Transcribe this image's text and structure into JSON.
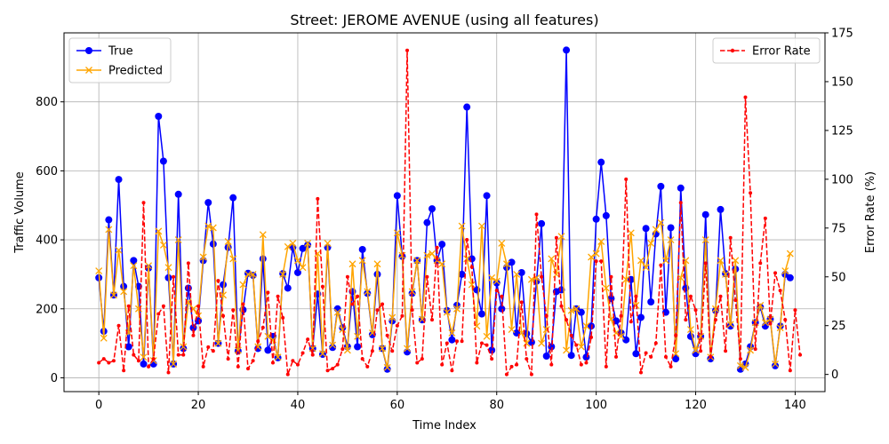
{
  "chart_data": {
    "type": "line",
    "title": "Street: JEROME AVENUE (using all features)",
    "xlabel": "Time Index",
    "ylabel": "Traffic Volume",
    "y2label": "Error Rate (%)",
    "xlim": [
      -7,
      146
    ],
    "ylim": [
      -40,
      1000
    ],
    "y2lim": [
      -8.8,
      175
    ],
    "xticks": [
      0,
      20,
      40,
      60,
      80,
      100,
      120,
      140
    ],
    "yticks": [
      0,
      200,
      400,
      600,
      800
    ],
    "y2ticks": [
      0,
      25,
      50,
      75,
      100,
      125,
      150,
      175
    ],
    "grid": true,
    "legend_left_position": "upper-left",
    "legend_right_position": "upper-right",
    "colors": {
      "true": "#0000ff",
      "predicted": "#ffa500",
      "error": "#ff0000"
    },
    "series": [
      {
        "name": "True",
        "axis": "left",
        "marker": "circle",
        "values": [
          290,
          135,
          458,
          240,
          575,
          265,
          90,
          340,
          265,
          40,
          318,
          40,
          758,
          628,
          290,
          40,
          532,
          85,
          260,
          145,
          165,
          340,
          508,
          388,
          100,
          270,
          378,
          522,
          78,
          197,
          303,
          297,
          85,
          345,
          80,
          120,
          58,
          302,
          260,
          378,
          305,
          375,
          385,
          85,
          243,
          68,
          378,
          88,
          200,
          145,
          90,
          250,
          90,
          372,
          245,
          125,
          300,
          85,
          25,
          165,
          528,
          352,
          75,
          245,
          340,
          168,
          450,
          490,
          340,
          387,
          195,
          110,
          210,
          300,
          785,
          345,
          255,
          185,
          528,
          80,
          275,
          200,
          320,
          335,
          130,
          305,
          128,
          103,
          280,
          447,
          63,
          90,
          250,
          255,
          950,
          65,
          200,
          190,
          60,
          150,
          460,
          625,
          470,
          230,
          165,
          130,
          110,
          285,
          70,
          175,
          433,
          220,
          417,
          555,
          190,
          435,
          55,
          550,
          260,
          120,
          70,
          120,
          473,
          55,
          195,
          488,
          302,
          150,
          315,
          25,
          40,
          90,
          160,
          205,
          150,
          170,
          35,
          150,
          300,
          290
        ]
      },
      {
        "name": "Predicted",
        "axis": "left",
        "marker": "x",
        "values": [
          310,
          115,
          430,
          240,
          370,
          250,
          130,
          325,
          200,
          60,
          325,
          50,
          425,
          385,
          320,
          40,
          400,
          90,
          220,
          200,
          180,
          350,
          440,
          435,
          100,
          240,
          395,
          345,
          80,
          270,
          300,
          300,
          90,
          415,
          120,
          110,
          60,
          300,
          380,
          390,
          340,
          320,
          390,
          85,
          360,
          70,
          390,
          95,
          190,
          140,
          80,
          330,
          120,
          340,
          250,
          130,
          330,
          85,
          30,
          175,
          420,
          355,
          85,
          250,
          340,
          170,
          355,
          360,
          340,
          330,
          190,
          130,
          200,
          440,
          345,
          270,
          150,
          440,
          120,
          290,
          280,
          390,
          330,
          140,
          300,
          130,
          100,
          285,
          290,
          100,
          140,
          345,
          300,
          410,
          80,
          195,
          200,
          90,
          150,
          350,
          360,
          395,
          260,
          170,
          130,
          120,
          285,
          420,
          210,
          340,
          320,
          390,
          430,
          450,
          340,
          400,
          70,
          290,
          340,
          140,
          80,
          120,
          400,
          60,
          200,
          340,
          300,
          155,
          340,
          35,
          30,
          80,
          160,
          210,
          160,
          170,
          40,
          145,
          310,
          360
        ]
      },
      {
        "name": "Error Rate",
        "axis": "right",
        "marker": "dot",
        "values": [
          6,
          8,
          6,
          7,
          25,
          2,
          35,
          10,
          7,
          88,
          4,
          8,
          31,
          35,
          1,
          50,
          10,
          10,
          57,
          20,
          35,
          4,
          14,
          12,
          48,
          30,
          8,
          33,
          4,
          36,
          3,
          7,
          17,
          24,
          42,
          6,
          40,
          29,
          0,
          7,
          5,
          11,
          18,
          10,
          90,
          45,
          2,
          3,
          5,
          13,
          50,
          36,
          40,
          8,
          4,
          12,
          33,
          36,
          20,
          12,
          25,
          30,
          166,
          33,
          6,
          8,
          50,
          28,
          65,
          5,
          16,
          2,
          17,
          17,
          69,
          55,
          6,
          16,
          15,
          8,
          43,
          40,
          0,
          4,
          5,
          37,
          8,
          0,
          82,
          50,
          30,
          5,
          70,
          35,
          28,
          20,
          15,
          5,
          6,
          19,
          58,
          58,
          4,
          50,
          9,
          30,
          100,
          27,
          40,
          1,
          11,
          9,
          16,
          56,
          9,
          4,
          20,
          88,
          28,
          40,
          33,
          12,
          57,
          9,
          28,
          40,
          12,
          70,
          38,
          8,
          142,
          93,
          13,
          57,
          80,
          26,
          52,
          43,
          28,
          2,
          33,
          10
        ]
      }
    ]
  }
}
